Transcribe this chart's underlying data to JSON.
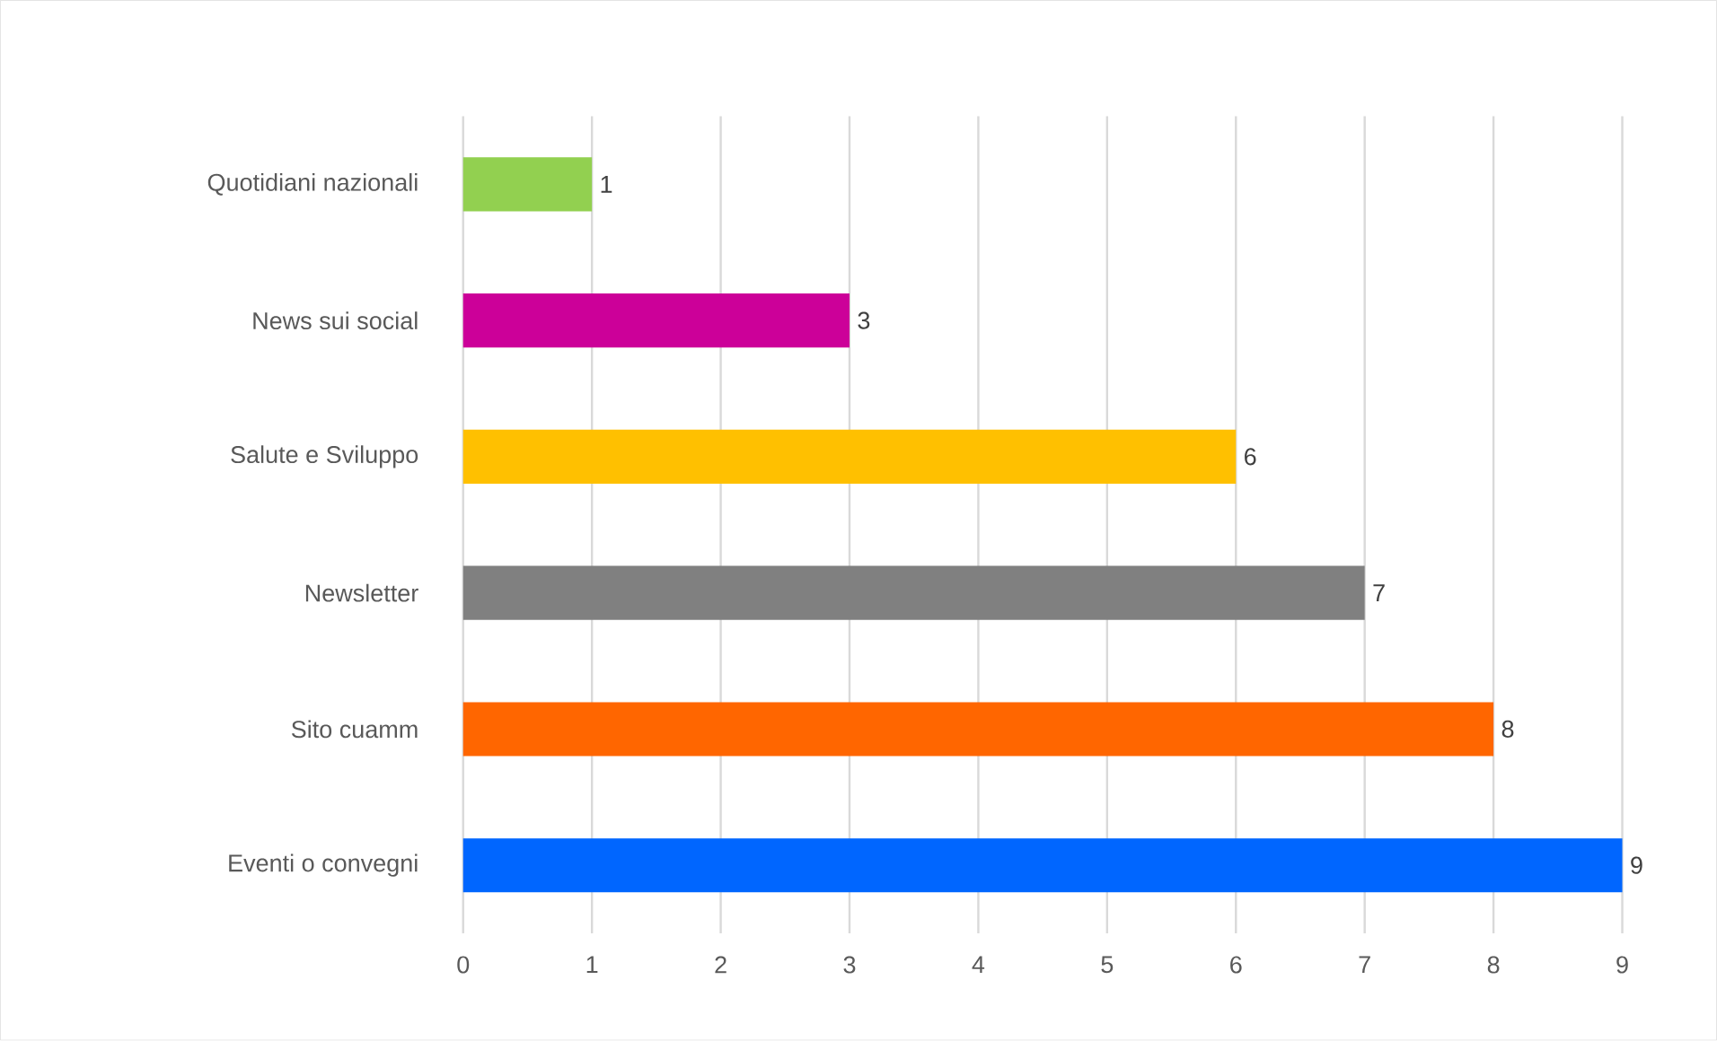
{
  "chart_data": {
    "type": "bar",
    "orientation": "horizontal",
    "categories": [
      "Quotidiani nazionali",
      "News sui social",
      "Salute e Sviluppo",
      "Newsletter",
      "Sito cuamm",
      "Eventi o convegni"
    ],
    "values": [
      1,
      3,
      6,
      7,
      8,
      9
    ],
    "colors": [
      "#92d050",
      "#cc0099",
      "#ffc000",
      "#808080",
      "#ff6600",
      "#0066ff"
    ],
    "xlim": [
      0,
      9
    ],
    "xticks": [
      0,
      1,
      2,
      3,
      4,
      5,
      6,
      7,
      8,
      9
    ],
    "grid": "x",
    "data_labels": true
  }
}
